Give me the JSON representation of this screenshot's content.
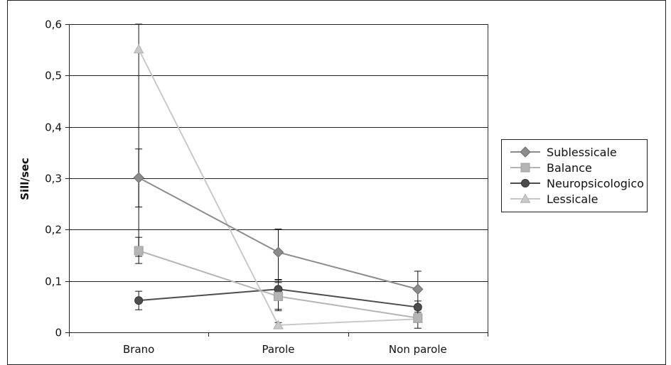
{
  "chart_data": {
    "type": "line",
    "title": "",
    "xlabel": "",
    "ylabel": "Sill/sec",
    "categories": [
      "Brano",
      "Parole",
      "Non parole"
    ],
    "ylim": [
      0,
      0.6
    ],
    "yticks": [
      0,
      0.1,
      0.2,
      0.3,
      0.4,
      0.5,
      0.6
    ],
    "ytick_labels": [
      "0",
      "0,1",
      "0,2",
      "0,3",
      "0,4",
      "0,5",
      "0,6"
    ],
    "grid": true,
    "legend_position": "right",
    "series": [
      {
        "name": "Sublessicale",
        "marker": "diamond",
        "color": "#8c8c8c",
        "values": [
          0.301,
          0.156,
          0.084
        ],
        "error_low": [
          0.244,
          0.103,
          0.05
        ],
        "error_high": [
          0.357,
          0.201,
          0.119
        ]
      },
      {
        "name": "Balance",
        "marker": "square",
        "color": "#b5b5b5",
        "values": [
          0.159,
          0.07,
          0.028
        ],
        "error_low": [
          0.134,
          0.042,
          0.02
        ],
        "error_high": [
          0.185,
          0.097,
          0.036
        ]
      },
      {
        "name": "Neuropsicologico",
        "marker": "circle",
        "color": "#4d4d4d",
        "values": [
          0.062,
          0.084,
          0.049
        ],
        "error_low": [
          0.044,
          0.045,
          0.039
        ],
        "error_high": [
          0.08,
          0.102,
          0.061
        ]
      },
      {
        "name": "Lessicale",
        "marker": "triangle",
        "color": "#c9c9c9",
        "values": [
          0.551,
          0.014,
          0.026
        ],
        "error_low": [
          0.148,
          0.011,
          0.008
        ],
        "error_high": [
          0.6,
          0.019,
          0.044
        ]
      }
    ]
  }
}
